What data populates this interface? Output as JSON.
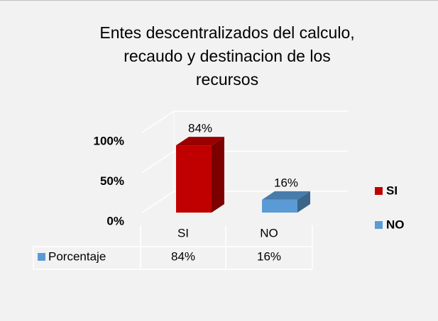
{
  "chart_data": {
    "type": "bar3d",
    "title": "Entes descentralizados del calculo, recaudo y destinacion de los recursos",
    "categories": [
      "SI",
      "NO"
    ],
    "colors": [
      "#c00000",
      "#5b9bd5"
    ],
    "series": [
      {
        "name": "Porcentaje",
        "color": "#5b9bd5",
        "values": [
          84,
          16
        ],
        "value_labels": [
          "84%",
          "16%"
        ]
      }
    ],
    "ylim": [
      0,
      100
    ],
    "yticks": [
      {
        "value": 0,
        "label": "0%"
      },
      {
        "value": 50,
        "label": "50%"
      },
      {
        "value": 100,
        "label": "100%"
      }
    ],
    "grid": true,
    "legend": "right",
    "data_table": true
  }
}
